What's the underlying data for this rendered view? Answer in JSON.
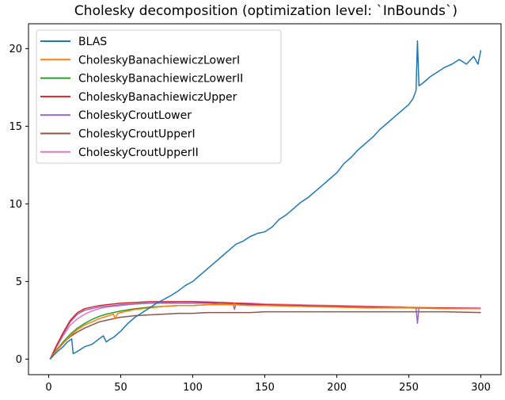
{
  "chart_data": {
    "type": "line",
    "title": "Cholesky decomposition (optimization level: `InBounds`)",
    "xlabel": "",
    "ylabel": "",
    "xlim": [
      -14,
      314
    ],
    "ylim": [
      -1,
      21.6
    ],
    "xticks": [
      0,
      50,
      100,
      150,
      200,
      250,
      300
    ],
    "yticks": [
      0,
      5,
      10,
      15,
      20
    ],
    "grid": false,
    "legend_position": "upper left",
    "series": [
      {
        "name": "BLAS",
        "color": "#1f77b4",
        "x": [
          1,
          5,
          10,
          13,
          16,
          17,
          20,
          25,
          30,
          35,
          38,
          40,
          42,
          45,
          50,
          55,
          60,
          65,
          70,
          75,
          80,
          85,
          90,
          95,
          100,
          105,
          110,
          115,
          120,
          125,
          130,
          135,
          140,
          145,
          150,
          155,
          160,
          165,
          170,
          175,
          180,
          185,
          190,
          195,
          200,
          205,
          210,
          215,
          220,
          225,
          230,
          235,
          240,
          245,
          250,
          253,
          255,
          256,
          257,
          260,
          265,
          270,
          275,
          280,
          285,
          290,
          295,
          298,
          300
        ],
        "y": [
          0,
          0.4,
          0.8,
          1.1,
          1.3,
          0.35,
          0.5,
          0.8,
          0.95,
          1.3,
          1.5,
          1.1,
          1.25,
          1.4,
          1.8,
          2.3,
          2.7,
          3.0,
          3.3,
          3.6,
          3.85,
          4.1,
          4.4,
          4.75,
          5.0,
          5.4,
          5.8,
          6.2,
          6.6,
          7.0,
          7.4,
          7.6,
          7.9,
          8.1,
          8.2,
          8.5,
          9.0,
          9.3,
          9.7,
          10.1,
          10.4,
          10.8,
          11.2,
          11.6,
          12.0,
          12.6,
          13.0,
          13.5,
          13.9,
          14.3,
          14.8,
          15.2,
          15.6,
          16.0,
          16.4,
          16.8,
          17.3,
          20.5,
          17.6,
          17.8,
          18.2,
          18.5,
          18.8,
          19.0,
          19.3,
          19.0,
          19.5,
          19.0,
          19.9
        ]
      },
      {
        "name": "CholeskyBanachiewiczLowerI",
        "color": "#ff7f0e",
        "x": [
          1,
          5,
          10,
          15,
          20,
          25,
          30,
          35,
          40,
          45,
          46,
          48,
          50,
          60,
          70,
          80,
          90,
          100,
          110,
          120,
          130,
          140,
          150,
          175,
          200,
          225,
          250,
          275,
          300
        ],
        "y": [
          0,
          0.5,
          1.0,
          1.5,
          1.9,
          2.2,
          2.4,
          2.6,
          2.75,
          2.9,
          2.6,
          2.95,
          3.0,
          3.2,
          3.3,
          3.4,
          3.45,
          3.45,
          3.5,
          3.5,
          3.5,
          3.45,
          3.45,
          3.4,
          3.35,
          3.3,
          3.3,
          3.25,
          3.25
        ]
      },
      {
        "name": "CholeskyBanachiewiczLowerII",
        "color": "#2ca02c",
        "x": [
          1,
          5,
          10,
          15,
          20,
          25,
          30,
          35,
          40,
          45,
          50,
          60,
          70,
          80,
          90,
          100,
          110,
          120,
          130,
          140,
          150,
          175,
          200,
          225,
          250,
          275,
          300
        ],
        "y": [
          0,
          0.55,
          1.1,
          1.6,
          2.0,
          2.3,
          2.55,
          2.75,
          2.9,
          3.0,
          3.1,
          3.25,
          3.35,
          3.4,
          3.45,
          3.45,
          3.5,
          3.5,
          3.5,
          3.45,
          3.45,
          3.4,
          3.35,
          3.3,
          3.3,
          3.25,
          3.25
        ]
      },
      {
        "name": "CholeskyBanachiewiczUpper",
        "color": "#d62728",
        "x": [
          1,
          5,
          10,
          15,
          20,
          25,
          30,
          35,
          40,
          50,
          60,
          70,
          80,
          90,
          100,
          110,
          120,
          130,
          140,
          150,
          175,
          200,
          225,
          250,
          275,
          300
        ],
        "y": [
          0,
          0.8,
          1.7,
          2.5,
          3.0,
          3.25,
          3.35,
          3.45,
          3.5,
          3.6,
          3.65,
          3.7,
          3.7,
          3.7,
          3.7,
          3.65,
          3.65,
          3.6,
          3.55,
          3.5,
          3.45,
          3.4,
          3.35,
          3.3,
          3.3,
          3.25
        ]
      },
      {
        "name": "CholeskyCroutLower",
        "color": "#9467bd",
        "x": [
          1,
          5,
          10,
          15,
          20,
          25,
          30,
          35,
          40,
          50,
          60,
          70,
          80,
          90,
          100,
          110,
          120,
          128,
          129,
          130,
          140,
          150,
          175,
          200,
          225,
          250,
          255,
          256,
          257,
          260,
          275,
          300
        ],
        "y": [
          0,
          0.75,
          1.6,
          2.4,
          2.9,
          3.15,
          3.25,
          3.35,
          3.4,
          3.5,
          3.55,
          3.6,
          3.6,
          3.6,
          3.6,
          3.6,
          3.55,
          3.55,
          3.2,
          3.55,
          3.5,
          3.5,
          3.45,
          3.4,
          3.35,
          3.3,
          3.3,
          2.3,
          3.3,
          3.3,
          3.25,
          3.25
        ]
      },
      {
        "name": "CholeskyCroutUpperI",
        "color": "#8c564b",
        "x": [
          1,
          5,
          10,
          15,
          20,
          25,
          30,
          35,
          40,
          45,
          50,
          60,
          70,
          80,
          90,
          100,
          110,
          120,
          130,
          140,
          150,
          175,
          200,
          225,
          250,
          275,
          300
        ],
        "y": [
          0,
          0.55,
          1.05,
          1.45,
          1.75,
          2.0,
          2.2,
          2.4,
          2.5,
          2.6,
          2.7,
          2.8,
          2.85,
          2.9,
          2.95,
          2.95,
          3.0,
          3.0,
          3.0,
          3.0,
          3.05,
          3.05,
          3.05,
          3.05,
          3.05,
          3.05,
          3.0
        ]
      },
      {
        "name": "CholeskyCroutUpperII",
        "color": "#e377c2",
        "x": [
          1,
          5,
          10,
          15,
          20,
          25,
          30,
          35,
          40,
          50,
          60,
          70,
          80,
          90,
          100,
          110,
          120,
          130,
          140,
          150,
          175,
          200,
          225,
          250,
          275,
          300
        ],
        "y": [
          0,
          0.7,
          1.5,
          2.2,
          2.6,
          2.9,
          3.1,
          3.25,
          3.35,
          3.45,
          3.55,
          3.6,
          3.65,
          3.7,
          3.7,
          3.7,
          3.65,
          3.6,
          3.6,
          3.55,
          3.5,
          3.45,
          3.4,
          3.35,
          3.3,
          3.3
        ]
      }
    ]
  }
}
